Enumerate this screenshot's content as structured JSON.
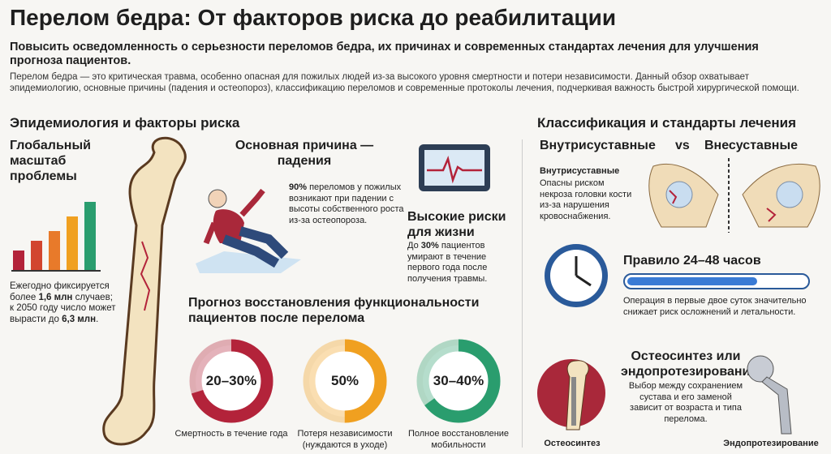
{
  "header": {
    "title": "Перелом бедра: От факторов риска до реабилитации",
    "subtitle": "Повысить осведомленность о серьезности переломов бедра, их причинах и современных стандартах лечения для улучшения прогноза пациентов.",
    "intro": "Перелом бедра — это критическая травма, особенно опасная для пожилых людей из-за высокого уровня смертности и потери независимости. Данный обзор охватывает эпидемиологию, основные причины (падения и остеопороз), классификацию переломов и современные протоколы лечения, подчеркивая важность быстрой хирургической помощи."
  },
  "left": {
    "heading": "Эпидемиология и факторы риска",
    "scale": {
      "title": "Глобальный масштаб проблемы",
      "text": [
        "Ежегодно фиксируется более ",
        "1,6 млн",
        " случаев; к 2050 году число может вырасти до ",
        "6,3 млн",
        "."
      ]
    },
    "falls": {
      "title": "Основная причина — падения",
      "text": [
        "90%",
        " переломов у пожилых возникают при падении с высоты собственного роста из-за остеопороза."
      ]
    },
    "risk": {
      "title": "Высокие риски для жизни",
      "text": [
        "До ",
        "30%",
        " пациентов умирают в течение первого года после получения травмы."
      ]
    },
    "prognosis": {
      "title": "Прогноз восстановления функциональности пациентов после перелома",
      "rings": [
        {
          "label": "20–30%",
          "caption": "Смертность в течение года",
          "color": "#b3233a"
        },
        {
          "label": "50%",
          "caption": "Потеря независимости (нуждаются в уходе)",
          "color": "#f0a020"
        },
        {
          "label": "30–40%",
          "caption": "Полное восстановление мобильности",
          "color": "#2a9d6e"
        }
      ]
    }
  },
  "right": {
    "heading": "Классификация и стандарты лечения",
    "compare": {
      "a": "Внутрисуставные",
      "vs": "vs",
      "b": "Внесуставные"
    },
    "intra": {
      "title": "Внутрисуставные",
      "text": "Опасны риском некроза головки кости из-за нарушения кровоснабжения."
    },
    "rule": {
      "title": "Правило 24–48 часов",
      "text": "Операция в первые двое суток значительно снижает риск осложнений и летальности."
    },
    "surgery": {
      "title": "Остеосинтез или эндопротезирование",
      "text": "Выбор между сохранением сустава и его заменой зависит от возраста и типа перелома.",
      "label_a": "Остеосинтез",
      "label_b": "Эндопротезирование"
    }
  }
}
